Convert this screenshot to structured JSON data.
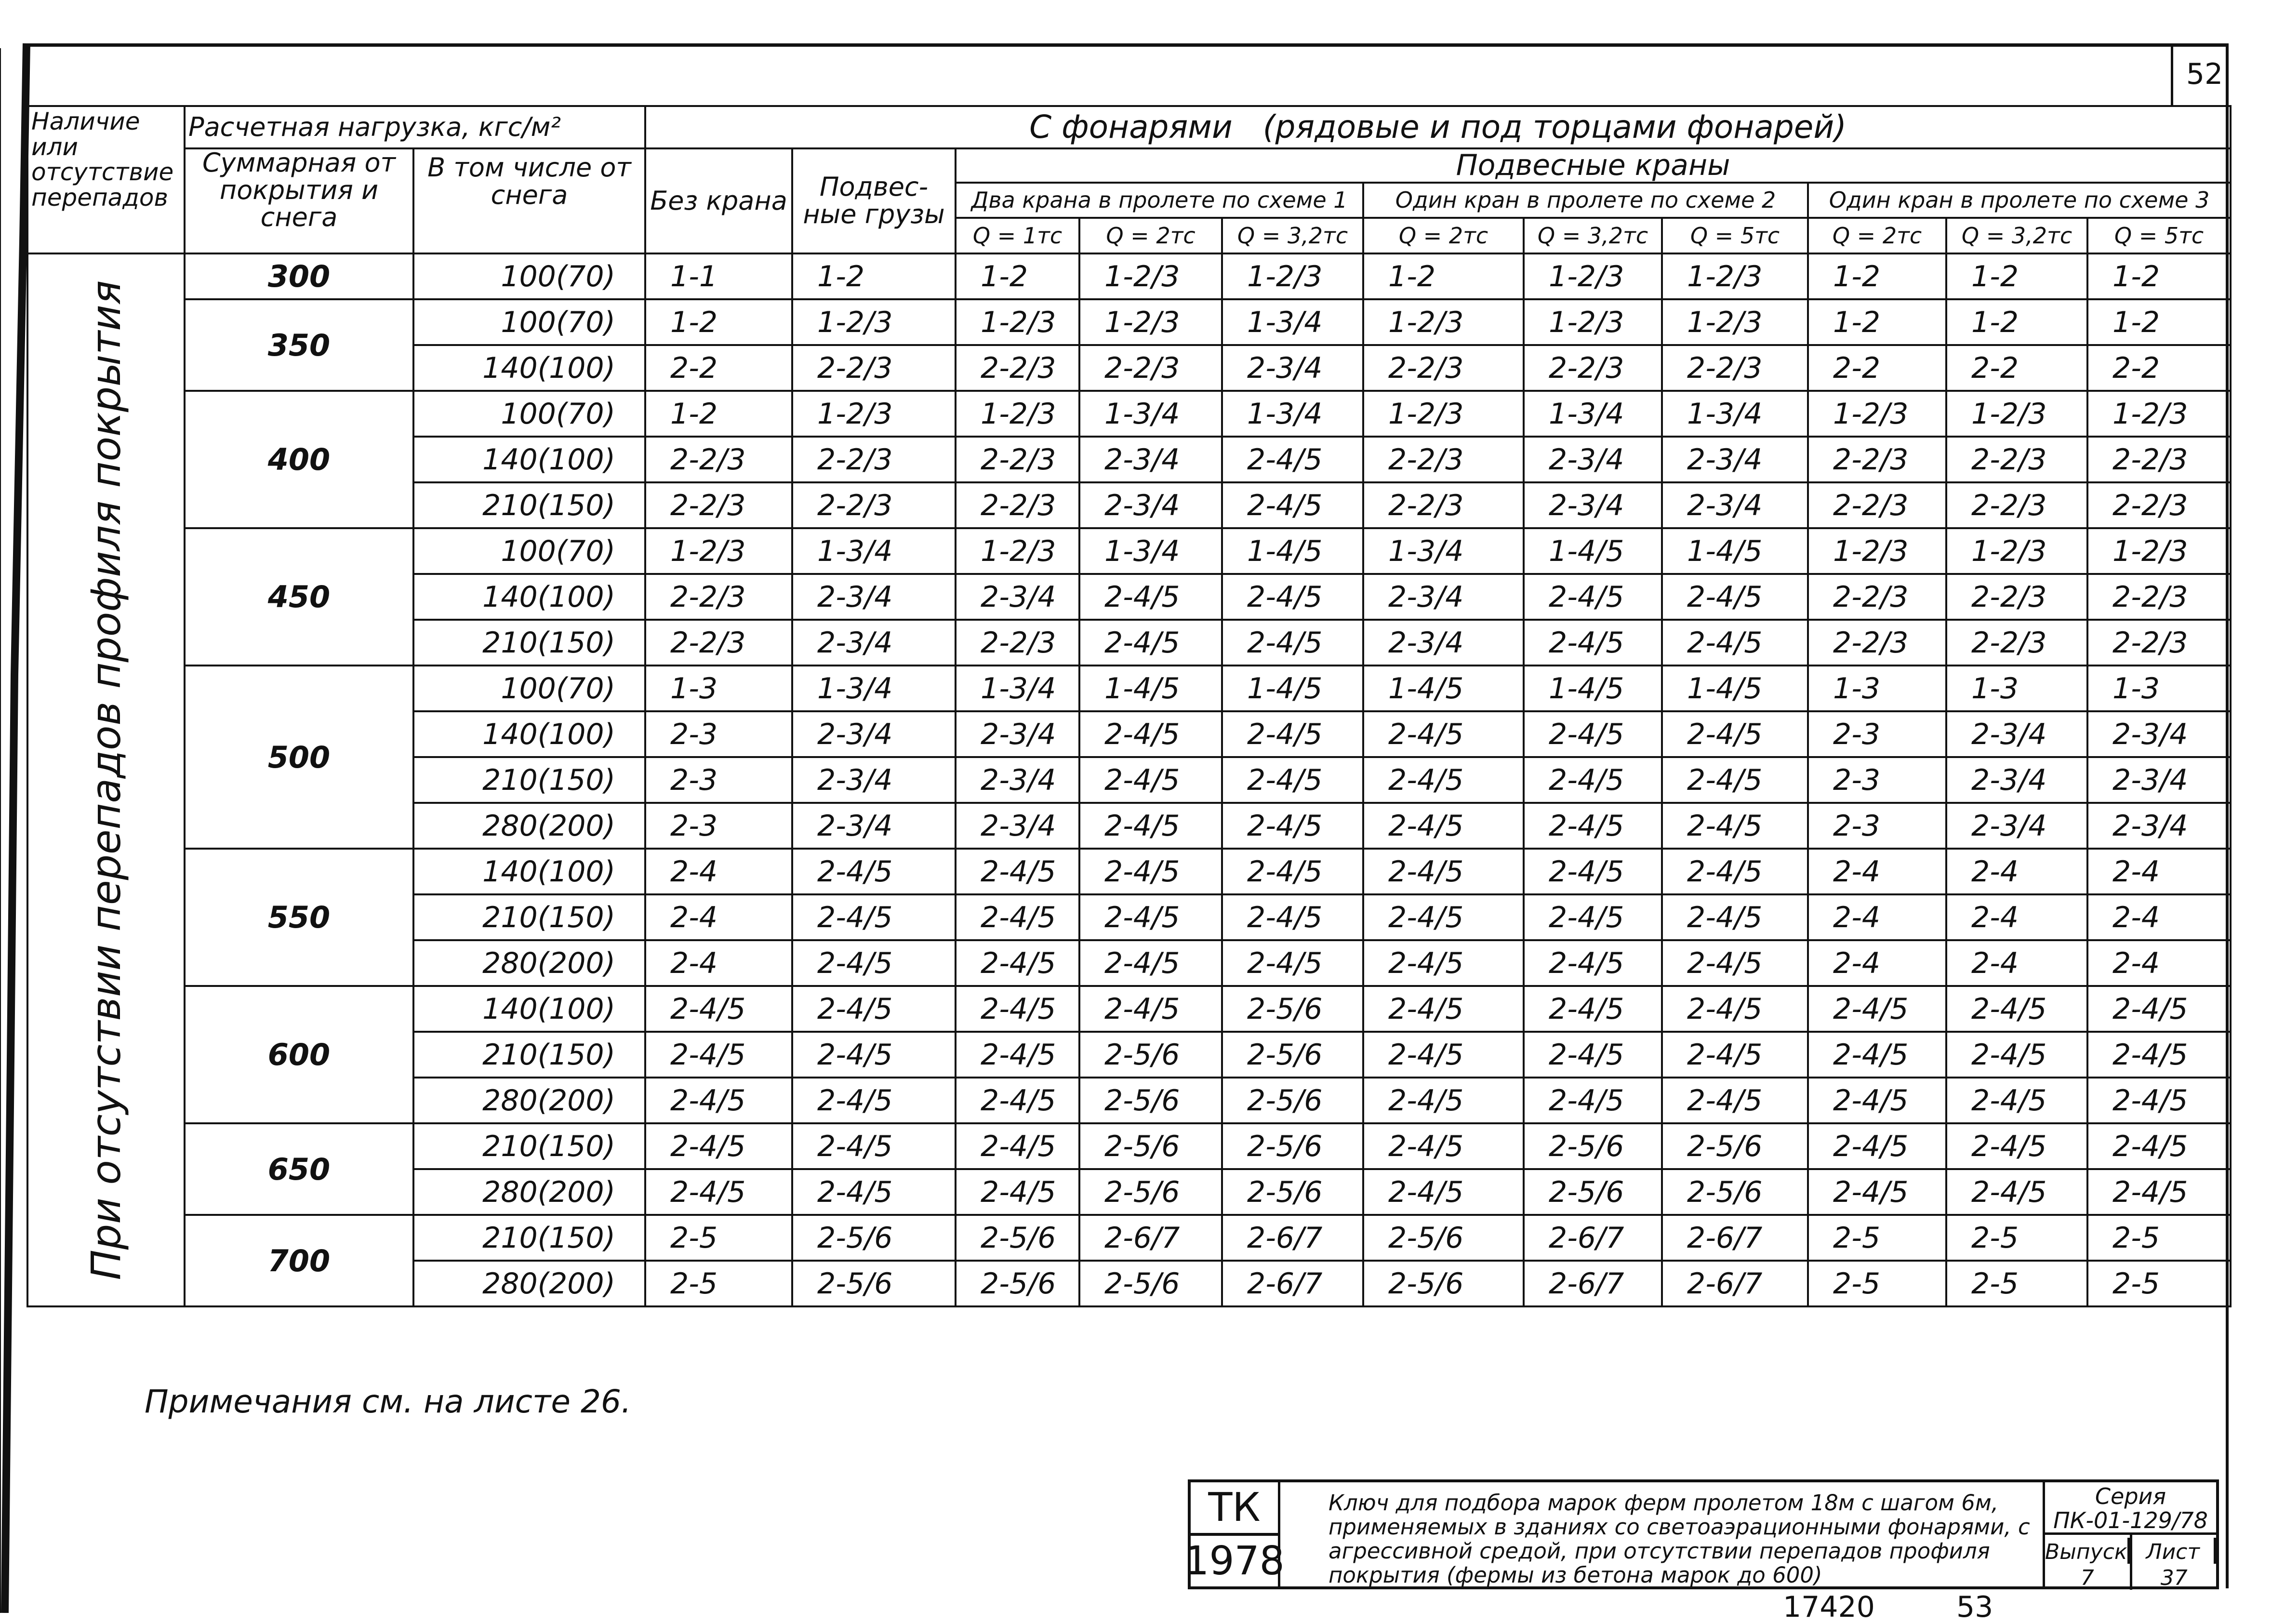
{
  "page_number": "52",
  "table": {
    "headers": {
      "presence": "Наличие или отсутствие перепадов",
      "design_load": "Расчетная нагрузка, кгс/м²",
      "total": "Суммарная от покрытия и снега",
      "snow": "В том числе от снега",
      "with_lanterns": "С фонарями   (рядовые и под торцами фонарей)",
      "no_crane": "Без крана",
      "hanging_loads": "Подвес-ные грузы",
      "hanging_cranes": "Подвесные краны",
      "groups": [
        "Два крана в пролете по схеме 1",
        "Один кран в пролете по схеме 2",
        "Один кран в пролете по схеме 3"
      ],
      "capacities": [
        "Q = 1тс",
        "Q = 2тс",
        "Q = 3,2тс",
        "Q = 2тс",
        "Q = 3,2тс",
        "Q = 5тс",
        "Q = 2тс",
        "Q = 3,2тс",
        "Q = 5тс"
      ]
    },
    "row_header": "При отсутствии перепадов профиля покрытия",
    "groups": [
      {
        "load": "300",
        "rows": [
          {
            "snow": "100(70)",
            "values": [
              "1-1",
              "1-2",
              "1-2",
              "1-2/3",
              "1-2/3",
              "1-2",
              "1-2/3",
              "1-2/3",
              "1-2",
              "1-2",
              "1-2"
            ]
          }
        ]
      },
      {
        "load": "350",
        "rows": [
          {
            "snow": "100(70)",
            "values": [
              "1-2",
              "1-2/3",
              "1-2/3",
              "1-2/3",
              "1-3/4",
              "1-2/3",
              "1-2/3",
              "1-2/3",
              "1-2",
              "1-2",
              "1-2"
            ]
          },
          {
            "snow": "140(100)",
            "values": [
              "2-2",
              "2-2/3",
              "2-2/3",
              "2-2/3",
              "2-3/4",
              "2-2/3",
              "2-2/3",
              "2-2/3",
              "2-2",
              "2-2",
              "2-2"
            ]
          }
        ]
      },
      {
        "load": "400",
        "rows": [
          {
            "snow": "100(70)",
            "values": [
              "1-2",
              "1-2/3",
              "1-2/3",
              "1-3/4",
              "1-3/4",
              "1-2/3",
              "1-3/4",
              "1-3/4",
              "1-2/3",
              "1-2/3",
              "1-2/3"
            ]
          },
          {
            "snow": "140(100)",
            "values": [
              "2-2/3",
              "2-2/3",
              "2-2/3",
              "2-3/4",
              "2-4/5",
              "2-2/3",
              "2-3/4",
              "2-3/4",
              "2-2/3",
              "2-2/3",
              "2-2/3"
            ]
          },
          {
            "snow": "210(150)",
            "values": [
              "2-2/3",
              "2-2/3",
              "2-2/3",
              "2-3/4",
              "2-4/5",
              "2-2/3",
              "2-3/4",
              "2-3/4",
              "2-2/3",
              "2-2/3",
              "2-2/3"
            ]
          }
        ]
      },
      {
        "load": "450",
        "rows": [
          {
            "snow": "100(70)",
            "values": [
              "1-2/3",
              "1-3/4",
              "1-2/3",
              "1-3/4",
              "1-4/5",
              "1-3/4",
              "1-4/5",
              "1-4/5",
              "1-2/3",
              "1-2/3",
              "1-2/3"
            ]
          },
          {
            "snow": "140(100)",
            "values": [
              "2-2/3",
              "2-3/4",
              "2-3/4",
              "2-4/5",
              "2-4/5",
              "2-3/4",
              "2-4/5",
              "2-4/5",
              "2-2/3",
              "2-2/3",
              "2-2/3"
            ]
          },
          {
            "snow": "210(150)",
            "values": [
              "2-2/3",
              "2-3/4",
              "2-2/3",
              "2-4/5",
              "2-4/5",
              "2-3/4",
              "2-4/5",
              "2-4/5",
              "2-2/3",
              "2-2/3",
              "2-2/3"
            ]
          }
        ]
      },
      {
        "load": "500",
        "rows": [
          {
            "snow": "100(70)",
            "values": [
              "1-3",
              "1-3/4",
              "1-3/4",
              "1-4/5",
              "1-4/5",
              "1-4/5",
              "1-4/5",
              "1-4/5",
              "1-3",
              "1-3",
              "1-3"
            ]
          },
          {
            "snow": "140(100)",
            "values": [
              "2-3",
              "2-3/4",
              "2-3/4",
              "2-4/5",
              "2-4/5",
              "2-4/5",
              "2-4/5",
              "2-4/5",
              "2-3",
              "2-3/4",
              "2-3/4"
            ]
          },
          {
            "snow": "210(150)",
            "values": [
              "2-3",
              "2-3/4",
              "2-3/4",
              "2-4/5",
              "2-4/5",
              "2-4/5",
              "2-4/5",
              "2-4/5",
              "2-3",
              "2-3/4",
              "2-3/4"
            ]
          },
          {
            "snow": "280(200)",
            "values": [
              "2-3",
              "2-3/4",
              "2-3/4",
              "2-4/5",
              "2-4/5",
              "2-4/5",
              "2-4/5",
              "2-4/5",
              "2-3",
              "2-3/4",
              "2-3/4"
            ]
          }
        ]
      },
      {
        "load": "550",
        "rows": [
          {
            "snow": "140(100)",
            "values": [
              "2-4",
              "2-4/5",
              "2-4/5",
              "2-4/5",
              "2-4/5",
              "2-4/5",
              "2-4/5",
              "2-4/5",
              "2-4",
              "2-4",
              "2-4"
            ]
          },
          {
            "snow": "210(150)",
            "values": [
              "2-4",
              "2-4/5",
              "2-4/5",
              "2-4/5",
              "2-4/5",
              "2-4/5",
              "2-4/5",
              "2-4/5",
              "2-4",
              "2-4",
              "2-4"
            ]
          },
          {
            "snow": "280(200)",
            "values": [
              "2-4",
              "2-4/5",
              "2-4/5",
              "2-4/5",
              "2-4/5",
              "2-4/5",
              "2-4/5",
              "2-4/5",
              "2-4",
              "2-4",
              "2-4"
            ]
          }
        ]
      },
      {
        "load": "600",
        "rows": [
          {
            "snow": "140(100)",
            "values": [
              "2-4/5",
              "2-4/5",
              "2-4/5",
              "2-4/5",
              "2-5/6",
              "2-4/5",
              "2-4/5",
              "2-4/5",
              "2-4/5",
              "2-4/5",
              "2-4/5"
            ]
          },
          {
            "snow": "210(150)",
            "values": [
              "2-4/5",
              "2-4/5",
              "2-4/5",
              "2-5/6",
              "2-5/6",
              "2-4/5",
              "2-4/5",
              "2-4/5",
              "2-4/5",
              "2-4/5",
              "2-4/5"
            ]
          },
          {
            "snow": "280(200)",
            "values": [
              "2-4/5",
              "2-4/5",
              "2-4/5",
              "2-5/6",
              "2-5/6",
              "2-4/5",
              "2-4/5",
              "2-4/5",
              "2-4/5",
              "2-4/5",
              "2-4/5"
            ]
          }
        ]
      },
      {
        "load": "650",
        "rows": [
          {
            "snow": "210(150)",
            "values": [
              "2-4/5",
              "2-4/5",
              "2-4/5",
              "2-5/6",
              "2-5/6",
              "2-4/5",
              "2-5/6",
              "2-5/6",
              "2-4/5",
              "2-4/5",
              "2-4/5"
            ]
          },
          {
            "snow": "280(200)",
            "values": [
              "2-4/5",
              "2-4/5",
              "2-4/5",
              "2-5/6",
              "2-5/6",
              "2-4/5",
              "2-5/6",
              "2-5/6",
              "2-4/5",
              "2-4/5",
              "2-4/5"
            ]
          }
        ]
      },
      {
        "load": "700",
        "rows": [
          {
            "snow": "210(150)",
            "values": [
              "2-5",
              "2-5/6",
              "2-5/6",
              "2-6/7",
              "2-6/7",
              "2-5/6",
              "2-6/7",
              "2-6/7",
              "2-5",
              "2-5",
              "2-5"
            ]
          },
          {
            "snow": "280(200)",
            "values": [
              "2-5",
              "2-5/6",
              "2-5/6",
              "2-5/6",
              "2-6/7",
              "2-5/6",
              "2-6/7",
              "2-6/7",
              "2-5",
              "2-5",
              "2-5"
            ]
          }
        ]
      }
    ]
  },
  "note": "Примечания см. на листе  26.",
  "title_block": {
    "tk": "ТК",
    "year": "1978",
    "description": "Ключ для подбора марок ферм пролетом 18м с шагом 6м, применяемых в зданиях со светоаэрационными фонарями, с агрессивной средой, при отсутствии перепадов профиля покрытия (фермы из бетона марок до 600)",
    "series_label": "Серия",
    "series": "ПК-01-129/78",
    "issue_label": "Выпуск",
    "issue": "7",
    "sheet_label": "Лист",
    "sheet": "37"
  },
  "footer": {
    "code": "17420",
    "number": "53"
  }
}
